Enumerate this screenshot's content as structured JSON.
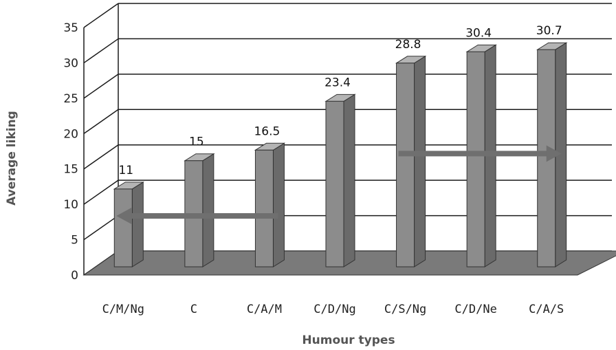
{
  "chart_data": {
    "type": "bar",
    "categories": [
      "C/M/Ng",
      "C",
      "C/A/M",
      "C/D/Ng",
      "C/S/Ng",
      "C/D/Ne",
      "C/A/S"
    ],
    "values": [
      11,
      15,
      16.5,
      23.4,
      28.8,
      30.4,
      30.7
    ],
    "data_labels": [
      "11",
      "15",
      "16.5",
      "23.4",
      "28.8",
      "30.4",
      "30.7"
    ],
    "xlabel": "Humour types",
    "ylabel": "Average liking",
    "ylim": [
      0,
      35
    ],
    "yticks": [
      0,
      5,
      10,
      15,
      20,
      25,
      30,
      35
    ],
    "grid": true,
    "style": "3d-bar",
    "colors": {
      "bar_front": "#8c8c8c",
      "bar_side": "#6a6a6a",
      "bar_top": "#b4b4b4",
      "floor": "#7a7a7a",
      "arrow": "#6f6f6f"
    },
    "annotations": [
      {
        "type": "arrow",
        "direction": "left",
        "from_category": "C/A/M",
        "to_category": "C/M/Ng",
        "y": 7.2
      },
      {
        "type": "arrow",
        "direction": "right",
        "from_category": "C/S/Ng",
        "to_category": "C/A/S",
        "y": 16
      }
    ]
  }
}
